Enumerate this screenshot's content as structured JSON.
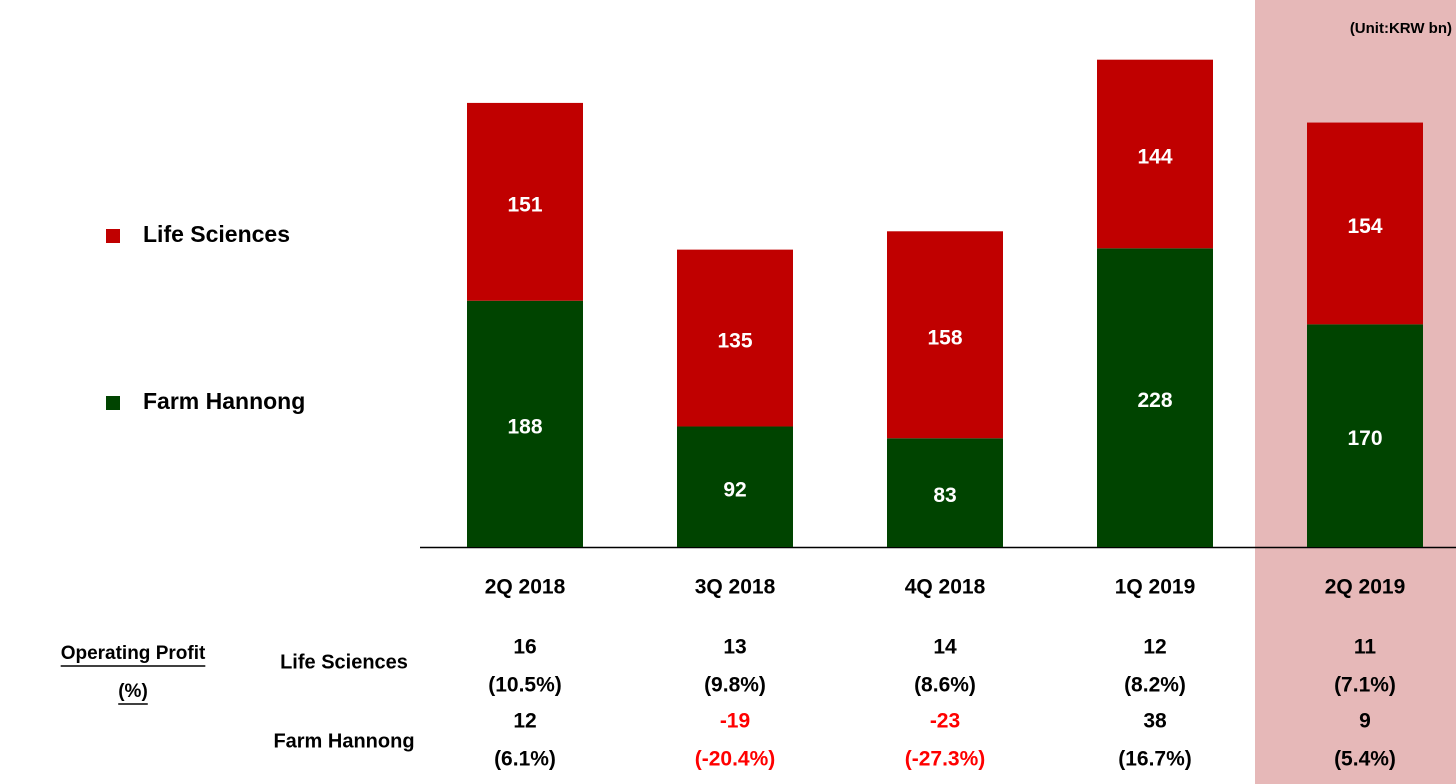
{
  "chart_data": {
    "type": "bar",
    "stacked": true,
    "unit_note": "(Unit:KRW bn)",
    "categories": [
      "2Q 2018",
      "3Q 2018",
      "4Q 2018",
      "1Q 2019",
      "2Q 2019"
    ],
    "highlight_category": "2Q 2019",
    "series": [
      {
        "name": "Farm Hannong",
        "color": "#004400",
        "values": [
          188,
          92,
          83,
          228,
          170
        ]
      },
      {
        "name": "Life Sciences",
        "color": "#c00000",
        "values": [
          151,
          135,
          158,
          144,
          154
        ]
      }
    ]
  },
  "table": {
    "title_lines": [
      "Operating Profit",
      "(%)"
    ],
    "rows": [
      {
        "name": "Life Sciences",
        "values": [
          16,
          13,
          14,
          12,
          11
        ],
        "margin_labels": [
          "(10.5%)",
          "(9.8%)",
          "(8.6%)",
          "(8.2%)",
          "(7.1%)"
        ]
      },
      {
        "name": "Farm Hannong",
        "values": [
          12,
          -19,
          -23,
          38,
          9
        ],
        "margin_labels": [
          "(6.1%)",
          "(-20.4%)",
          "(-27.3%)",
          "(16.7%)",
          "(5.4%)"
        ]
      }
    ]
  }
}
